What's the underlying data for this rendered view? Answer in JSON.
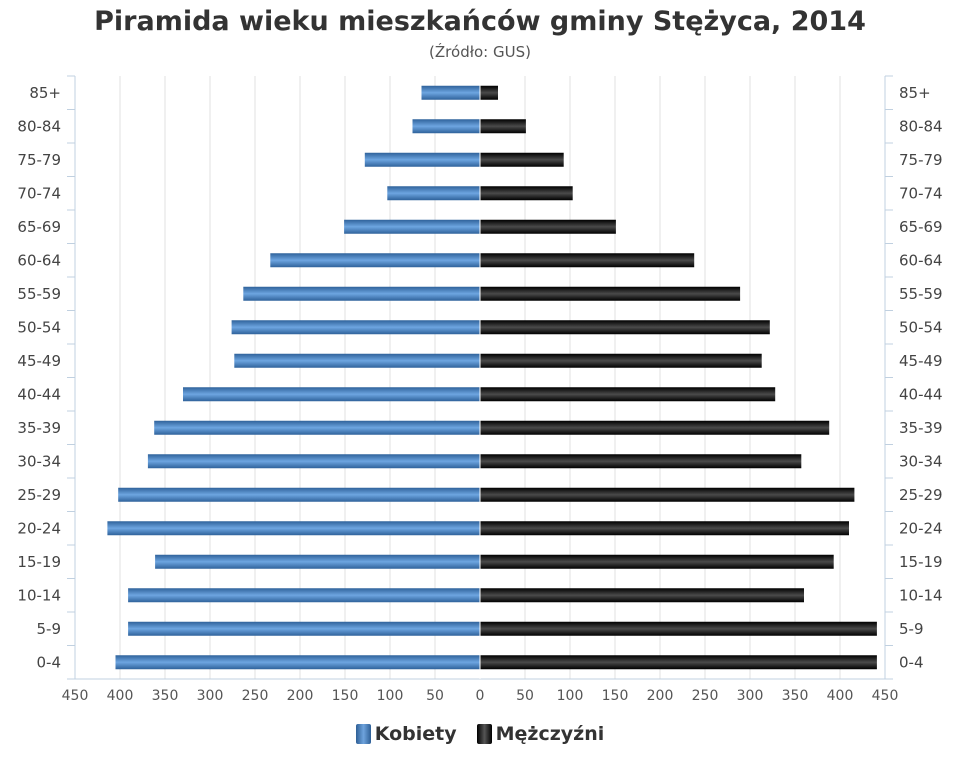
{
  "chart_data": {
    "type": "bar",
    "orientation": "horizontal",
    "layout": "population-pyramid",
    "title": "Piramida wieku mieszkańców gminy Stężyca, 2014",
    "subtitle": "(Źródło: GUS)",
    "categories": [
      "85+",
      "80-84",
      "75-79",
      "70-74",
      "65-69",
      "60-64",
      "55-59",
      "50-54",
      "45-49",
      "40-44",
      "35-39",
      "30-34",
      "25-29",
      "20-24",
      "15-19",
      "10-14",
      "5-9",
      "0-4"
    ],
    "series": [
      {
        "name": "Kobiety",
        "side": "left",
        "color": "#4a86c8",
        "values": [
          65,
          75,
          128,
          103,
          151,
          233,
          263,
          276,
          273,
          330,
          362,
          369,
          402,
          414,
          361,
          391,
          391,
          405
        ]
      },
      {
        "name": "Mężczyźni",
        "side": "right",
        "color": "#1a1a1a",
        "values": [
          20,
          51,
          93,
          103,
          151,
          238,
          289,
          322,
          313,
          328,
          388,
          357,
          416,
          410,
          393,
          360,
          441,
          441
        ]
      }
    ],
    "xlim": [
      -450,
      450
    ],
    "x_ticks": [
      450,
      400,
      350,
      300,
      250,
      200,
      150,
      100,
      50,
      0,
      50,
      100,
      150,
      200,
      250,
      300,
      350,
      400,
      450
    ],
    "grid": true,
    "legend_position": "bottom"
  }
}
